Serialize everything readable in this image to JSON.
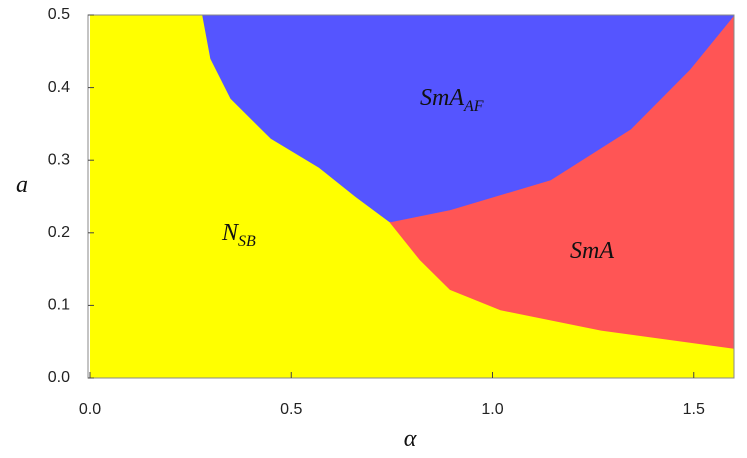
{
  "chart_data": {
    "type": "phase-diagram",
    "x_label": "α",
    "y_label": "a",
    "xlim": [
      -0.005,
      1.6
    ],
    "ylim": [
      0,
      0.5
    ],
    "xticks": [
      {
        "value": 0,
        "label": "0.0"
      },
      {
        "value": 0.5,
        "label": "0.5"
      },
      {
        "value": 1,
        "label": "1.0"
      },
      {
        "value": 1.5,
        "label": "1.5"
      }
    ],
    "yticks": [
      {
        "value": 0,
        "label": "0.0"
      },
      {
        "value": 0.1,
        "label": "0.1"
      },
      {
        "value": 0.2,
        "label": "0.2"
      },
      {
        "value": 0.3,
        "label": "0.3"
      },
      {
        "value": 0.4,
        "label": "0.4"
      },
      {
        "value": 0.5,
        "label": "0.5"
      }
    ],
    "regions": [
      {
        "label": "N",
        "label_sub": "SB",
        "color": "#ffff00"
      },
      {
        "label": "SmA",
        "label_sub": "AF",
        "color": "#5555ff"
      },
      {
        "label": "SmA",
        "color": "#ff5555"
      }
    ],
    "boundaries": [
      {
        "x": [
          0.28,
          0.3,
          0.35,
          0.45,
          0.57,
          0.66,
          0.745
        ],
        "y": [
          0.5,
          0.44,
          0.385,
          0.33,
          0.29,
          0.25,
          0.215
        ]
      },
      {
        "x": [
          0.745,
          0.895,
          1.144,
          1.343,
          1.49,
          1.6
        ],
        "y": [
          0.215,
          0.232,
          0.273,
          0.343,
          0.425,
          0.5
        ]
      },
      {
        "x": [
          0.745,
          0.82,
          0.895,
          1.02,
          1.27,
          1.6
        ],
        "y": [
          0.215,
          0.163,
          0.122,
          0.094,
          0.066,
          0.041
        ]
      }
    ]
  }
}
